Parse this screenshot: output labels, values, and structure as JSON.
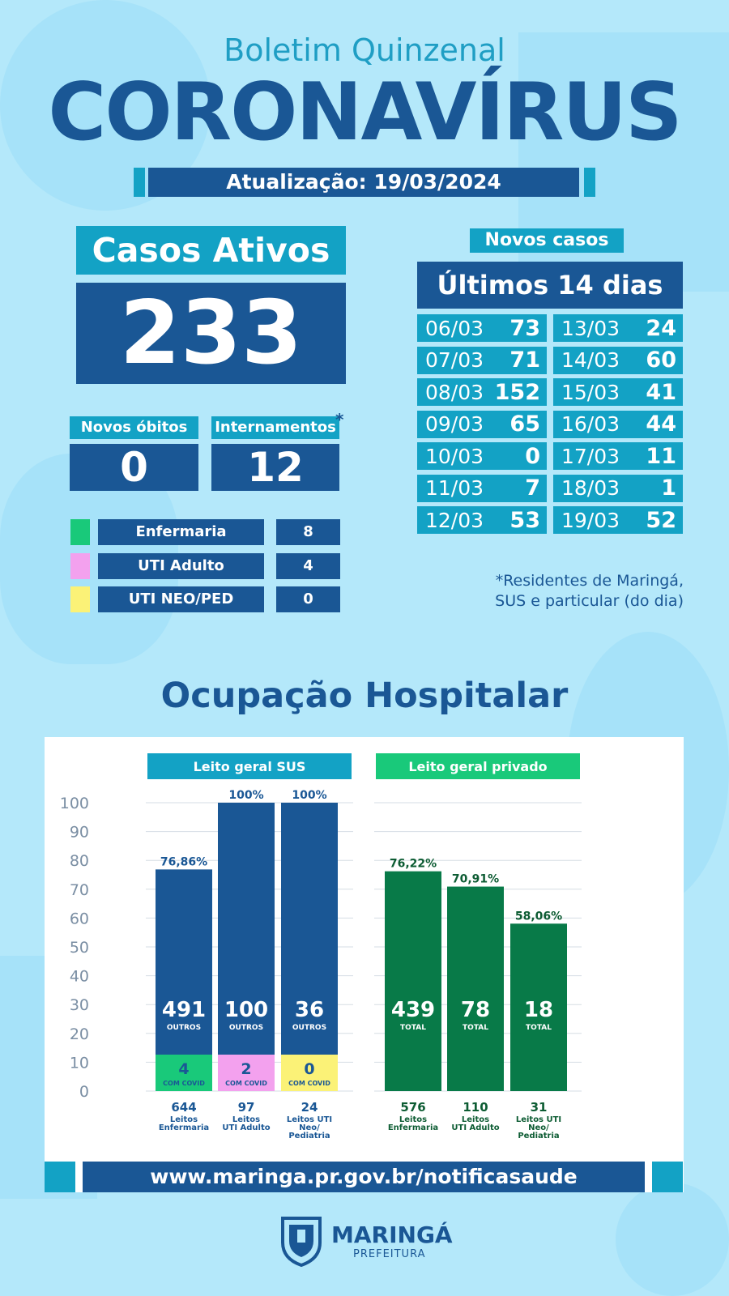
{
  "header": {
    "subtitle": "Boletim Quinzenal",
    "title": "CORONAVÍRUS",
    "update": "Atualização: 19/03/2024"
  },
  "casos_ativos": {
    "label": "Casos Ativos",
    "value": "233"
  },
  "novos_obitos": {
    "label": "Novos óbitos",
    "value": "0"
  },
  "internamentos": {
    "label": "Internamentos",
    "value": "12",
    "asterisk": "*"
  },
  "legend": [
    {
      "label": "Enfermaria",
      "value": "8",
      "color": "#19c97a"
    },
    {
      "label": "UTI Adulto",
      "value": "4",
      "color": "#f3a1ee"
    },
    {
      "label": "UTI NEO/PED",
      "value": "0",
      "color": "#fbf277"
    }
  ],
  "novos_casos": {
    "label": "Novos casos",
    "period": "Últimos 14 dias",
    "days": [
      {
        "date": "06/03",
        "value": "73"
      },
      {
        "date": "07/03",
        "value": "71"
      },
      {
        "date": "08/03",
        "value": "152"
      },
      {
        "date": "09/03",
        "value": "65"
      },
      {
        "date": "10/03",
        "value": "0"
      },
      {
        "date": "11/03",
        "value": "7"
      },
      {
        "date": "12/03",
        "value": "53"
      },
      {
        "date": "13/03",
        "value": "24"
      },
      {
        "date": "14/03",
        "value": "60"
      },
      {
        "date": "15/03",
        "value": "41"
      },
      {
        "date": "16/03",
        "value": "44"
      },
      {
        "date": "17/03",
        "value": "11"
      },
      {
        "date": "18/03",
        "value": "1"
      },
      {
        "date": "19/03",
        "value": "52"
      }
    ]
  },
  "footnote": [
    "*Residentes de Maringá,",
    "SUS e particular (do dia)"
  ],
  "ocupacao_title": "Ocupação Hospitalar",
  "colors": {
    "blue": "#1a5795",
    "cyan": "#13a2c5",
    "green": "#087a48",
    "lightgreen": "#19c97a"
  },
  "chart_data": {
    "type": "bar",
    "ylim": [
      0,
      100
    ],
    "yticks": [
      "100",
      "90",
      "80",
      "70",
      "60",
      "50",
      "40",
      "30",
      "20",
      "10",
      "0"
    ],
    "groups": [
      {
        "name": "Leito geral SUS",
        "header_color": "#13a2c5",
        "bars": [
          {
            "pct": 76.86,
            "pct_label": "76,86%",
            "big": "491",
            "small": "OUTROS",
            "covid": "4",
            "covid_label": "COM COVID",
            "covid_color": "#19c97a",
            "total": "644",
            "cat": [
              "Leitos",
              "Enfermaria"
            ]
          },
          {
            "pct": 100,
            "pct_label": "100%",
            "big": "100",
            "small": "OUTROS",
            "covid": "2",
            "covid_label": "COM COVID",
            "covid_color": "#f3a1ee",
            "total": "97",
            "cat": [
              "Leitos",
              "UTI Adulto"
            ]
          },
          {
            "pct": 100,
            "pct_label": "100%",
            "big": "36",
            "small": "OUTROS",
            "covid": "0",
            "covid_label": "COM COVID",
            "covid_color": "#fbf277",
            "total": "24",
            "cat": [
              "Leitos UTI",
              "Neo/",
              "Pediatria"
            ]
          }
        ]
      },
      {
        "name": "Leito geral privado",
        "header_color": "#19c97a",
        "bars": [
          {
            "pct": 76.22,
            "pct_label": "76,22%",
            "big": "439",
            "small": "TOTAL",
            "total": "576",
            "cat": [
              "Leitos",
              "Enfermaria"
            ]
          },
          {
            "pct": 70.91,
            "pct_label": "70,91%",
            "big": "78",
            "small": "TOTAL",
            "total": "110",
            "cat": [
              "Leitos",
              "UTI Adulto"
            ]
          },
          {
            "pct": 58.06,
            "pct_label": "58,06%",
            "big": "18",
            "small": "TOTAL",
            "total": "31",
            "cat": [
              "Leitos UTI",
              "Neo/",
              "Pediatria"
            ]
          }
        ]
      }
    ]
  },
  "url": "www.maringa.pr.gov.br/notificasaude",
  "logo": {
    "name": "MARINGÁ",
    "sub": "PREFEITURA"
  }
}
